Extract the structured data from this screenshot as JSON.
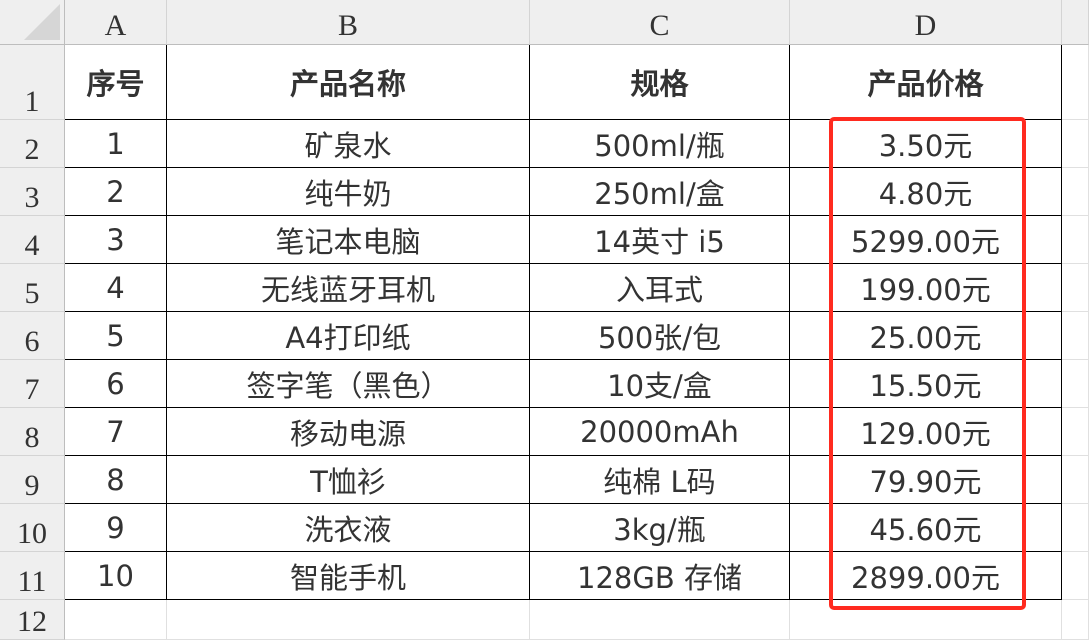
{
  "columns": [
    "A",
    "B",
    "C",
    "D"
  ],
  "row_numbers": [
    "1",
    "2",
    "3",
    "4",
    "5",
    "6",
    "7",
    "8",
    "9",
    "10",
    "11",
    "12"
  ],
  "headers": [
    "序号",
    "产品名称",
    "规格",
    "产品价格"
  ],
  "rows": [
    [
      "1",
      "矿泉水",
      "500ml/瓶",
      "3.50元"
    ],
    [
      "2",
      "纯牛奶",
      "250ml/盒",
      "4.80元"
    ],
    [
      "3",
      "笔记本电脑",
      "14英寸 i5",
      "5299.00元"
    ],
    [
      "4",
      "无线蓝牙耳机",
      "入耳式",
      "199.00元"
    ],
    [
      "5",
      "A4打印纸",
      "500张/包",
      "25.00元"
    ],
    [
      "6",
      "签字笔（黑色）",
      "10支/盒",
      "15.50元"
    ],
    [
      "7",
      "移动电源",
      "20000mAh",
      "129.00元"
    ],
    [
      "8",
      "T恤衫",
      "纯棉 L码",
      "79.90元"
    ],
    [
      "9",
      "洗衣液",
      "3kg/瓶",
      "45.60元"
    ],
    [
      "10",
      "智能手机",
      "128GB 存储",
      "2899.00元"
    ]
  ],
  "highlight_color": "#ff2a1f"
}
